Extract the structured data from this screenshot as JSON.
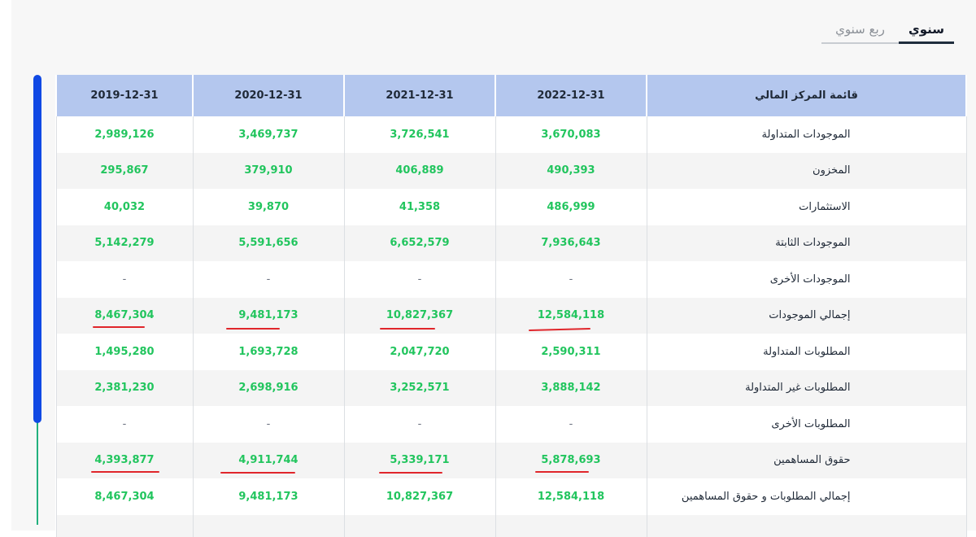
{
  "tabs": {
    "annual": "سنوي",
    "quarterly": "ربع سنوي"
  },
  "colors": {
    "value": "#22c55e",
    "header_bg": "#b4c7ee",
    "scroll_thumb": "#1049e4",
    "underline": "#e0262b"
  },
  "table": {
    "headers": [
      "قائمة المركز المالي",
      "2022-12-31",
      "2021-12-31",
      "2020-12-31",
      "2019-12-31"
    ],
    "rows": [
      {
        "label": "الموجودات المتداولة",
        "values": [
          "3,670,083",
          "3,726,541",
          "3,469,737",
          "2,989,126"
        ]
      },
      {
        "label": "المخزون",
        "values": [
          "490,393",
          "406,889",
          "379,910",
          "295,867"
        ]
      },
      {
        "label": "الاستثمارات",
        "values": [
          "486,999",
          "41,358",
          "39,870",
          "40,032"
        ]
      },
      {
        "label": "الموجودات الثابتة",
        "values": [
          "7,936,643",
          "6,652,579",
          "5,591,656",
          "5,142,279"
        ]
      },
      {
        "label": "الموجودات الأخرى",
        "values": [
          "-",
          "-",
          "-",
          "-"
        ]
      },
      {
        "label": "إجمالي الموجودات",
        "values": [
          "12,584,118",
          "10,827,367",
          "9,481,173",
          "8,467,304"
        ]
      },
      {
        "label": "المطلوبات المتداولة",
        "values": [
          "2,590,311",
          "2,047,720",
          "1,693,728",
          "1,495,280"
        ]
      },
      {
        "label": "المطلوبات غير المتداولة",
        "values": [
          "3,888,142",
          "3,252,571",
          "2,698,916",
          "2,381,230"
        ]
      },
      {
        "label": "المطلوبات الأخرى",
        "values": [
          "-",
          "-",
          "-",
          "-"
        ]
      },
      {
        "label": "حقوق المساهمين",
        "values": [
          "5,878,693",
          "5,339,171",
          "4,911,744",
          "4,393,877"
        ]
      },
      {
        "label": "إجمالي المطلوبات و حقوق المساهمين",
        "values": [
          "12,584,118",
          "10,827,367",
          "9,481,173",
          "8,467,304"
        ]
      }
    ]
  }
}
